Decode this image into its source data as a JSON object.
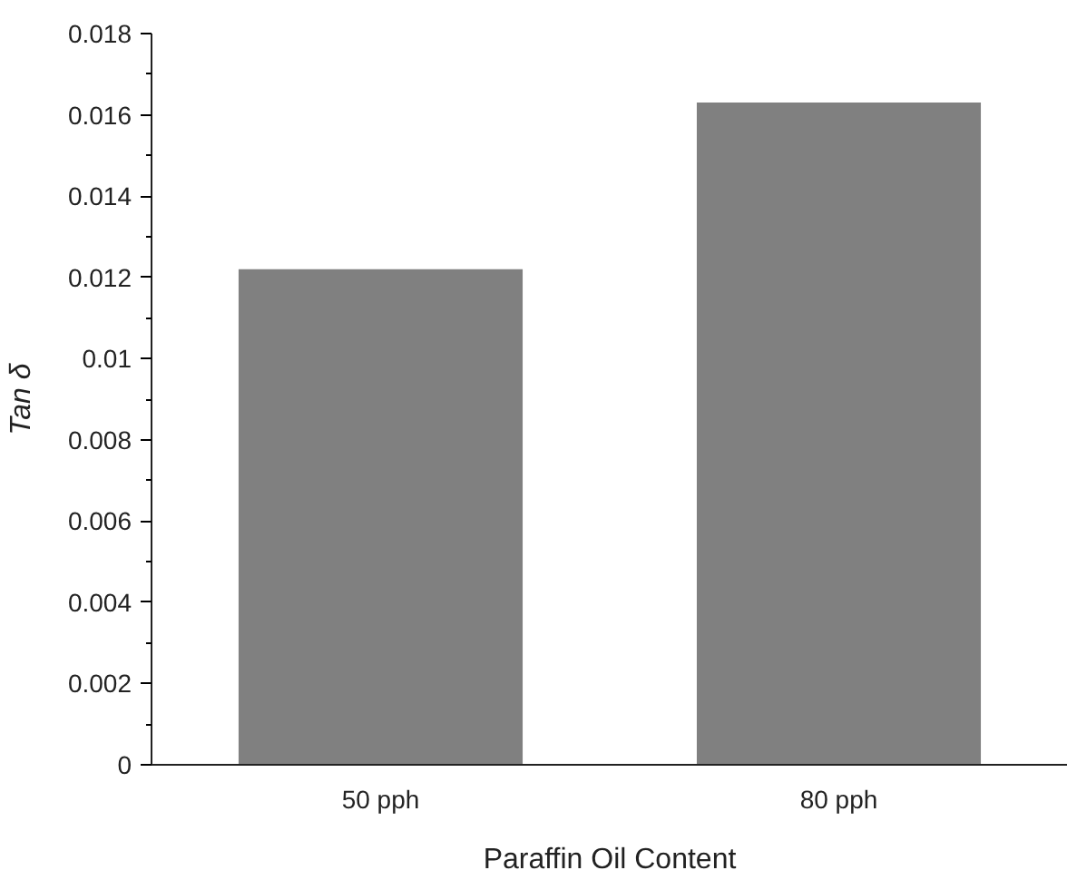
{
  "chart_data": {
    "type": "bar",
    "xlabel": "Paraffin Oil Content",
    "ylabel": "Tan δ",
    "categories": [
      "50 pph",
      "80 pph"
    ],
    "values": [
      0.0122,
      0.0163
    ],
    "color": "#808080",
    "ylim": [
      0,
      0.018
    ],
    "yticks": [
      0,
      0.002,
      0.004,
      0.006,
      0.008,
      0.01,
      0.012,
      0.014,
      0.016,
      0.018
    ],
    "grid": false
  }
}
